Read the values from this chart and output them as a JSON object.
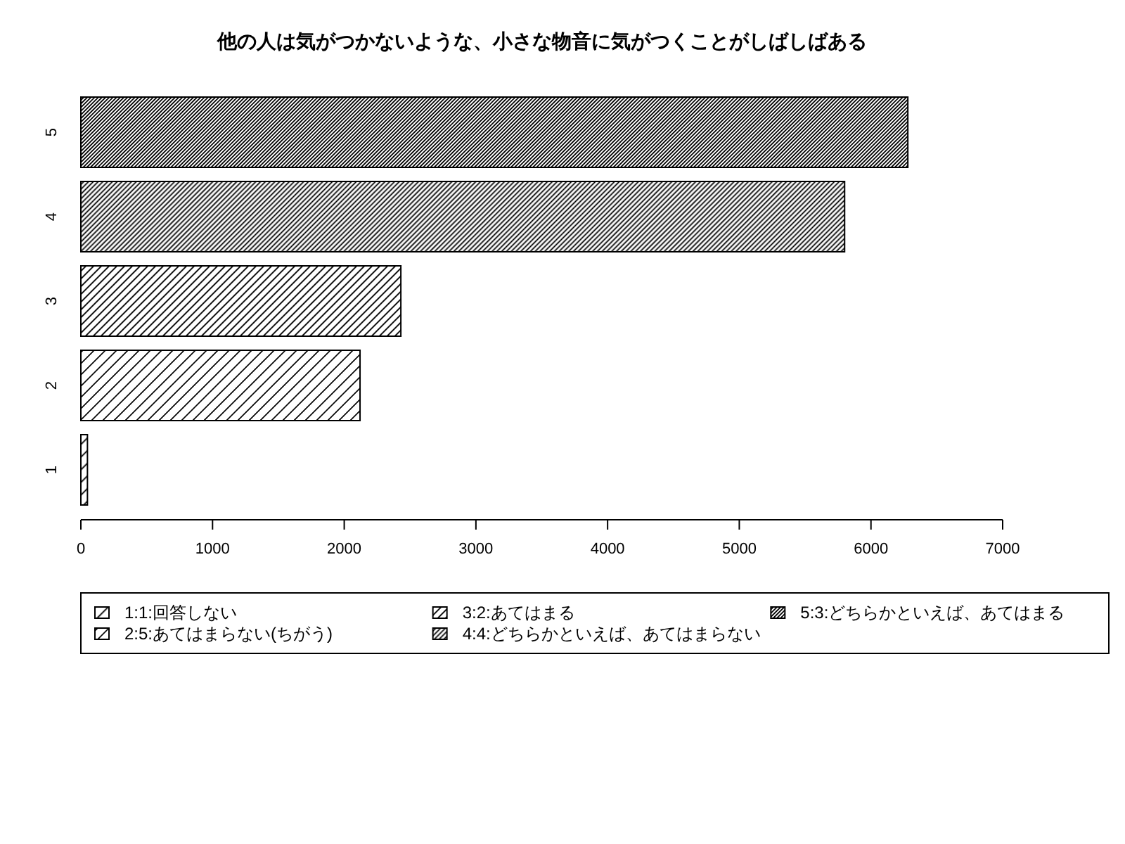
{
  "chart_data": {
    "type": "bar",
    "orientation": "horizontal",
    "stacked": true,
    "title": "他の人は気がつかないような、小さな物音に気がつくことがしばしばある",
    "categories": [
      "5",
      "4",
      "3",
      "2",
      "1"
    ],
    "series": [
      {
        "name": "1:1:回答しない",
        "color": "#000000",
        "values": [
          null,
          null,
          null,
          null,
          50
        ]
      },
      {
        "name": "2:5:あてはまらない(ちがう)",
        "color": "#000000",
        "values": [
          null,
          null,
          null,
          2120,
          null
        ]
      },
      {
        "name": "3:2:あてはまる",
        "color": "#000000",
        "values": [
          null,
          null,
          2430,
          null,
          null
        ]
      },
      {
        "name": "4:4:どちらかといえば、あてはまらない",
        "color": "#000000",
        "values": [
          null,
          5800,
          null,
          null,
          null
        ]
      },
      {
        "name": "5:3:どちらかといえば、あてはまる",
        "color": "#000000",
        "values": [
          6280,
          null,
          null,
          null,
          null
        ]
      }
    ],
    "xlim": [
      0,
      7000
    ],
    "xticks": [
      0,
      1000,
      2000,
      3000,
      4000,
      5000,
      6000,
      7000
    ],
    "legend": "bottom"
  }
}
